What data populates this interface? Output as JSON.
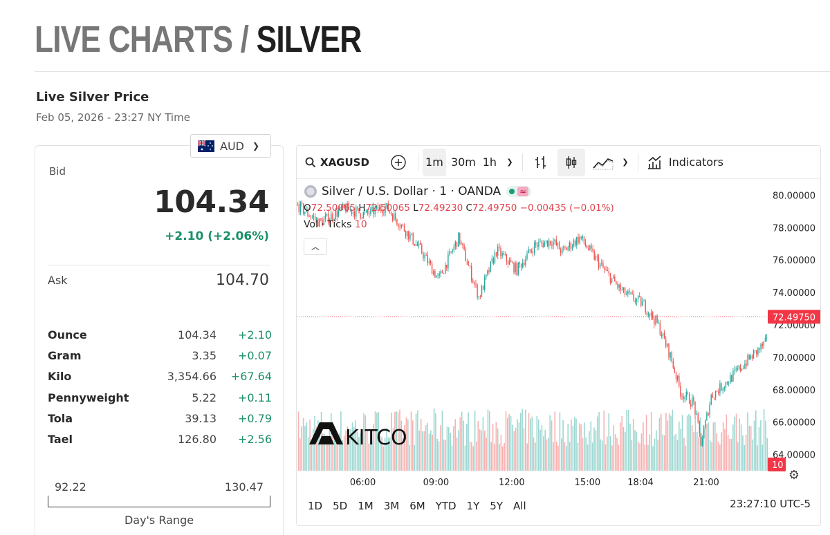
{
  "header": {
    "title_prefix": "LIVE CHARTS / ",
    "title_main": "SILVER"
  },
  "price_panel": {
    "title": "Live Silver Price",
    "timestamp": "Feb 05, 2026 - 23:27 NY Time",
    "currency": "AUD",
    "bid_label": "Bid",
    "bid_value": "104.34",
    "bid_change": "+2.10 (+2.06%)",
    "ask_label": "Ask",
    "ask_value": "104.70",
    "units": [
      {
        "name": "Ounce",
        "price": "104.34",
        "change": "+2.10"
      },
      {
        "name": "Gram",
        "price": "3.35",
        "change": "+0.07"
      },
      {
        "name": "Kilo",
        "price": "3,354.66",
        "change": "+67.64"
      },
      {
        "name": "Pennyweight",
        "price": "5.22",
        "change": "+0.11"
      },
      {
        "name": "Tola",
        "price": "39.13",
        "change": "+0.79"
      },
      {
        "name": "Tael",
        "price": "126.80",
        "change": "+2.56"
      }
    ],
    "range_low": "92.22",
    "range_high": "130.47",
    "range_label": "Day's Range"
  },
  "chart_toolbar": {
    "symbol": "XAGUSD",
    "timeframes": [
      "1m",
      "30m",
      "1h"
    ],
    "active_timeframe": "1m",
    "indicators_label": "Indicators"
  },
  "chart_legend": {
    "title": "Silver / U.S. Dollar · 1 · OANDA",
    "o_label": "O",
    "o": "72.50065",
    "h_label": "H",
    "h": "72.50065",
    "l_label": "L",
    "l": "72.49230",
    "c_label": "C",
    "c": "72.49750",
    "change": "−0.00435 (−0.01%)",
    "vol_label": "Vol · Ticks",
    "vol_value": "10"
  },
  "chart_footer": {
    "periods": [
      "1D",
      "5D",
      "1M",
      "3M",
      "6M",
      "YTD",
      "1Y",
      "5Y",
      "All"
    ],
    "time": "23:27:10 UTC-5"
  },
  "watermark": "KITCO",
  "colors": {
    "up": "#26a69a",
    "down": "#ef5350",
    "positive_text": "#1a8f68",
    "price_tag": "#f23645"
  },
  "chart_data": {
    "type": "candlestick",
    "instrument": "XAGUSD",
    "interval": "1m",
    "x_ticks": [
      "06:00",
      "09:00",
      "12:00",
      "15:00",
      "18:04",
      "21:00"
    ],
    "y_ticks": [
      "80.00000",
      "78.00000",
      "76.00000",
      "74.00000",
      "72.00000",
      "70.00000",
      "68.00000",
      "66.00000",
      "64.00000"
    ],
    "ylim": [
      63.0,
      81.0
    ],
    "last_price": "72.49750",
    "last_volume": "10",
    "price_path": [
      [
        3.0,
        79.5
      ],
      [
        4.0,
        78.3
      ],
      [
        5.0,
        79.2
      ],
      [
        5.8,
        78.8
      ],
      [
        6.6,
        79.3
      ],
      [
        7.3,
        78.0
      ],
      [
        8.0,
        76.6
      ],
      [
        8.7,
        74.8
      ],
      [
        9.5,
        77.4
      ],
      [
        10.3,
        73.7
      ],
      [
        11.0,
        76.6
      ],
      [
        11.8,
        75.4
      ],
      [
        12.5,
        76.9
      ],
      [
        13.2,
        77.2
      ],
      [
        13.6,
        76.5
      ],
      [
        14.3,
        77.4
      ],
      [
        15.2,
        75.5
      ],
      [
        16.0,
        74.0
      ],
      [
        16.8,
        73.3
      ],
      [
        17.4,
        72.0
      ],
      [
        17.9,
        70.0
      ],
      [
        18.3,
        67.8
      ],
      [
        18.8,
        67.2
      ],
      [
        19.1,
        64.7
      ],
      [
        19.5,
        67.6
      ],
      [
        20.2,
        68.6
      ],
      [
        21.0,
        69.9
      ],
      [
        22.0,
        71.4
      ],
      [
        22.6,
        72.8
      ],
      [
        23.2,
        72.2
      ],
      [
        23.6,
        71.2
      ],
      [
        24.0,
        72.2
      ],
      [
        24.5,
        73.0
      ],
      [
        25.0,
        72.5
      ]
    ]
  }
}
